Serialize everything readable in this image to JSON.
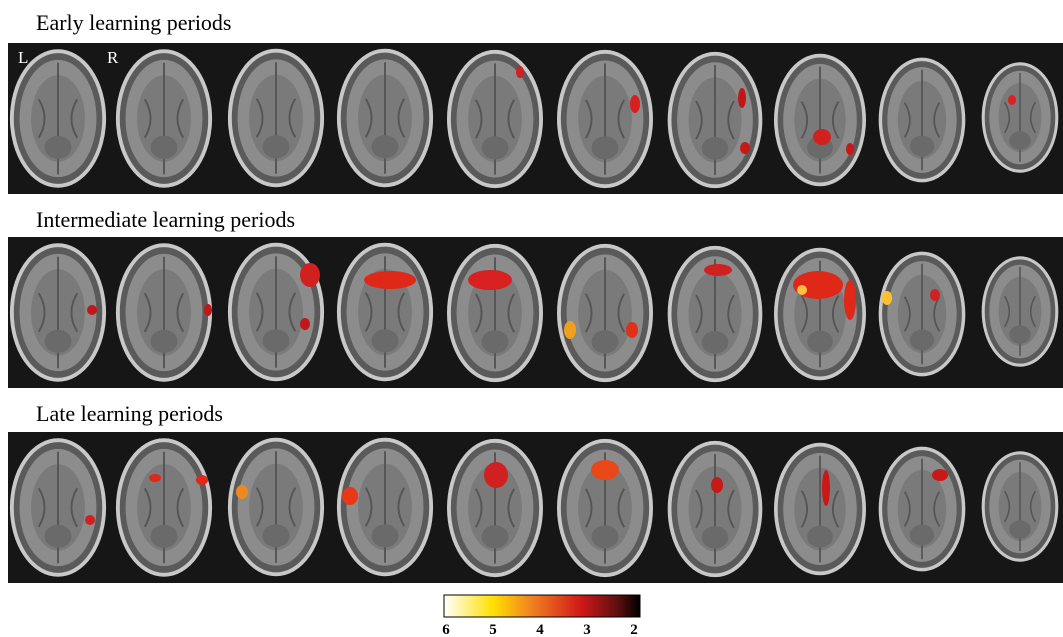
{
  "panels": [
    {
      "title": "Early learning periods"
    },
    {
      "title": "Intermediate  learning periods"
    },
    {
      "title": "Late  learning periods"
    }
  ],
  "orientation": {
    "left": "L",
    "right": "R"
  },
  "colorbar": {
    "ticks": [
      6,
      5,
      4,
      3,
      2
    ]
  }
}
